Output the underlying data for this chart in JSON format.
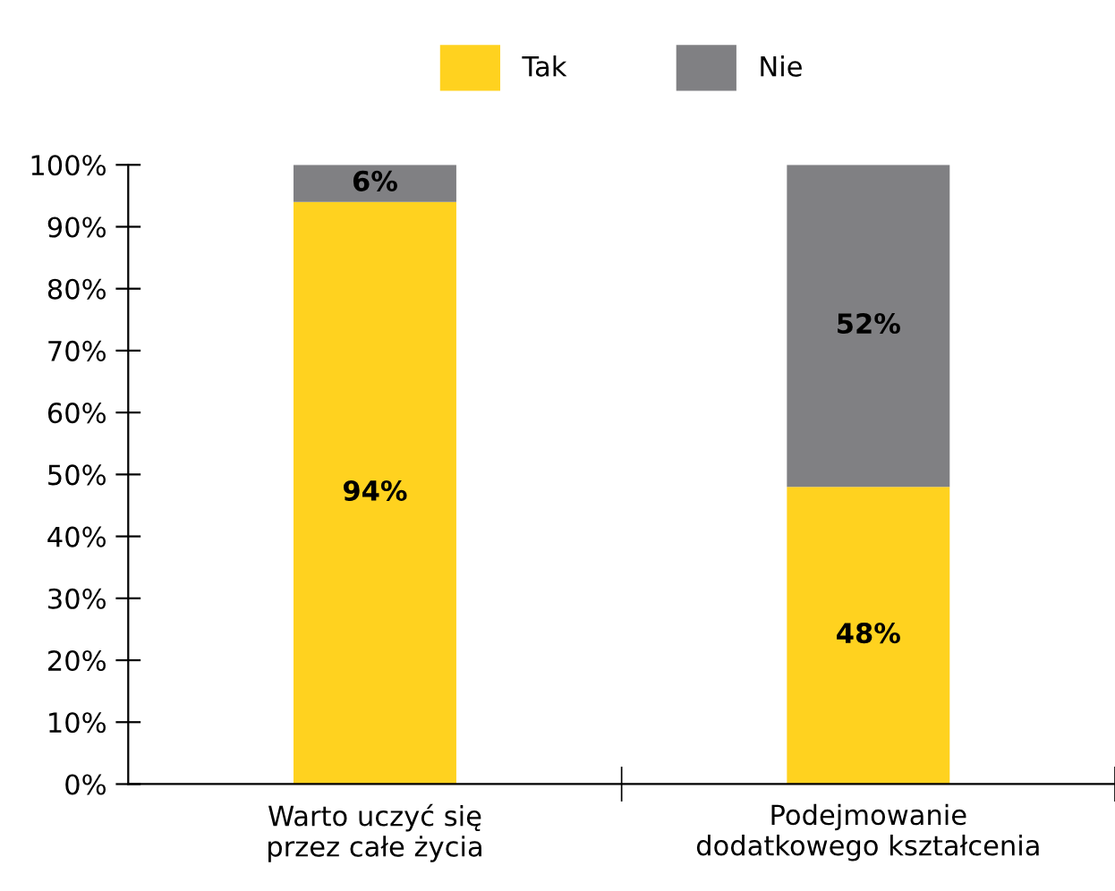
{
  "chart_data": {
    "type": "bar",
    "stacked": true,
    "categories": [
      "Warto uczyć się\nprzez całe życia",
      "Podejmowanie\ndodatkowego kształcenia"
    ],
    "series": [
      {
        "name": "Tak",
        "color": "#ffd21f",
        "values": [
          94,
          48
        ]
      },
      {
        "name": "Nie",
        "color": "#808083",
        "values": [
          6,
          52
        ]
      }
    ],
    "ylim": [
      0,
      100
    ],
    "yticks": [
      {
        "value": 0,
        "label": "0%"
      },
      {
        "value": 10,
        "label": "10%"
      },
      {
        "value": 20,
        "label": "20%"
      },
      {
        "value": 30,
        "label": "30%"
      },
      {
        "value": 40,
        "label": "40%"
      },
      {
        "value": 50,
        "label": "50%"
      },
      {
        "value": 60,
        "label": "60%"
      },
      {
        "value": 70,
        "label": "70%"
      },
      {
        "value": 80,
        "label": "80%"
      },
      {
        "value": 90,
        "label": "90%"
      },
      {
        "value": 100,
        "label": "100%"
      }
    ],
    "value_labels": [
      [
        "94%",
        "48%"
      ],
      [
        "6%",
        "52%"
      ]
    ],
    "legend": "top",
    "grid": false
  }
}
